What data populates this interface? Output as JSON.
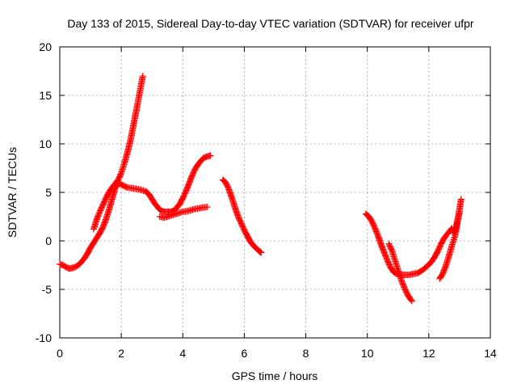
{
  "chart_data": {
    "type": "scatter",
    "title": "Day 133 of 2015, Sidereal Day-to-day VTEC variation (SDTVAR) for receiver ufpr",
    "xlabel": "GPS time / hours",
    "ylabel": "SDTVAR / TECUs",
    "xlim": [
      0,
      14
    ],
    "ylim": [
      -10,
      20
    ],
    "x_ticks": [
      "0",
      "2",
      "4",
      "6",
      "8",
      "10",
      "12",
      "14"
    ],
    "y_ticks": [
      "-10",
      "-5",
      "0",
      "5",
      "10",
      "15",
      "20"
    ],
    "x_tick_values": [
      0,
      2,
      4,
      6,
      8,
      10,
      12,
      14
    ],
    "y_tick_values": [
      -10,
      -5,
      0,
      5,
      10,
      15,
      20
    ],
    "grid": true,
    "marker": "plus",
    "color": "#ff0000",
    "series": [
      {
        "points": [
          [
            0.0,
            -2.4
          ],
          [
            0.1,
            -2.5
          ],
          [
            0.2,
            -2.7
          ],
          [
            0.3,
            -2.85
          ],
          [
            0.4,
            -2.8
          ],
          [
            0.5,
            -2.7
          ],
          [
            0.6,
            -2.5
          ],
          [
            0.7,
            -2.2
          ],
          [
            0.8,
            -1.8
          ],
          [
            0.9,
            -1.3
          ],
          [
            1.0,
            -0.7
          ],
          [
            1.1,
            -0.2
          ],
          [
            1.2,
            0.3
          ],
          [
            1.3,
            0.8
          ],
          [
            1.4,
            1.4
          ],
          [
            1.5,
            2.2
          ],
          [
            1.6,
            3.2
          ],
          [
            1.7,
            4.3
          ],
          [
            1.8,
            5.4
          ],
          [
            1.9,
            6.0
          ],
          [
            2.0,
            5.8
          ],
          [
            2.2,
            5.5
          ],
          [
            2.4,
            5.4
          ],
          [
            2.6,
            5.3
          ],
          [
            2.8,
            5.1
          ],
          [
            2.9,
            4.8
          ],
          [
            3.0,
            4.3
          ],
          [
            3.1,
            3.8
          ],
          [
            3.2,
            3.4
          ],
          [
            3.3,
            3.1
          ],
          [
            3.4,
            3.0
          ],
          [
            3.5,
            3.0
          ],
          [
            3.6,
            3.0
          ],
          [
            3.7,
            3.1
          ],
          [
            3.8,
            3.4
          ],
          [
            3.9,
            3.8
          ],
          [
            4.0,
            4.4
          ],
          [
            4.1,
            5.1
          ],
          [
            4.2,
            5.9
          ],
          [
            4.3,
            6.7
          ],
          [
            4.4,
            7.4
          ],
          [
            4.5,
            7.9
          ],
          [
            4.6,
            8.3
          ],
          [
            4.7,
            8.6
          ],
          [
            4.8,
            8.7
          ],
          [
            4.9,
            8.8
          ]
        ]
      },
      {
        "points": [
          [
            1.1,
            1.2
          ],
          [
            1.2,
            2.2
          ],
          [
            1.3,
            3.0
          ],
          [
            1.4,
            3.7
          ],
          [
            1.5,
            4.4
          ],
          [
            1.6,
            5.0
          ],
          [
            1.7,
            5.5
          ],
          [
            1.8,
            5.9
          ],
          [
            1.9,
            6.3
          ],
          [
            2.0,
            7.0
          ],
          [
            2.1,
            8.0
          ],
          [
            2.2,
            9.1
          ],
          [
            2.3,
            10.4
          ],
          [
            2.4,
            12.0
          ],
          [
            2.5,
            13.6
          ],
          [
            2.6,
            15.3
          ],
          [
            2.7,
            17.0
          ]
        ]
      },
      {
        "points": [
          [
            3.25,
            2.5
          ],
          [
            3.4,
            2.4
          ],
          [
            3.6,
            2.6
          ],
          [
            3.8,
            2.8
          ],
          [
            4.0,
            3.0
          ],
          [
            4.2,
            3.1
          ],
          [
            4.4,
            3.3
          ],
          [
            4.6,
            3.4
          ],
          [
            4.8,
            3.5
          ]
        ]
      },
      {
        "points": [
          [
            5.3,
            6.3
          ],
          [
            5.4,
            6.0
          ],
          [
            5.5,
            5.3
          ],
          [
            5.6,
            4.4
          ],
          [
            5.7,
            3.4
          ],
          [
            5.8,
            2.5
          ],
          [
            5.9,
            1.8
          ],
          [
            6.0,
            1.1
          ],
          [
            6.1,
            0.5
          ],
          [
            6.2,
            -0.1
          ],
          [
            6.3,
            -0.5
          ],
          [
            6.4,
            -0.8
          ],
          [
            6.5,
            -1.1
          ],
          [
            6.55,
            -1.2
          ]
        ]
      },
      {
        "points": [
          [
            9.95,
            2.8
          ],
          [
            10.05,
            2.5
          ],
          [
            10.15,
            2.0
          ],
          [
            10.25,
            1.3
          ],
          [
            10.35,
            0.5
          ],
          [
            10.45,
            -0.4
          ],
          [
            10.55,
            -1.2
          ],
          [
            10.65,
            -2.0
          ],
          [
            10.75,
            -2.7
          ],
          [
            10.85,
            -3.2
          ],
          [
            10.95,
            -3.4
          ],
          [
            11.05,
            -3.5
          ],
          [
            11.2,
            -3.5
          ],
          [
            11.35,
            -3.5
          ],
          [
            11.5,
            -3.4
          ],
          [
            11.65,
            -3.3
          ],
          [
            11.8,
            -3.0
          ],
          [
            11.95,
            -2.6
          ],
          [
            12.1,
            -2.1
          ],
          [
            12.2,
            -1.6
          ],
          [
            12.3,
            -1.0
          ],
          [
            12.4,
            -0.3
          ],
          [
            12.5,
            0.3
          ],
          [
            12.6,
            0.7
          ],
          [
            12.7,
            1.1
          ],
          [
            12.75,
            1.3
          ]
        ]
      },
      {
        "points": [
          [
            10.7,
            -0.3
          ],
          [
            10.8,
            -1.0
          ],
          [
            10.9,
            -2.0
          ],
          [
            11.0,
            -3.0
          ],
          [
            11.1,
            -4.0
          ],
          [
            11.2,
            -4.8
          ],
          [
            11.3,
            -5.5
          ],
          [
            11.4,
            -6.0
          ],
          [
            11.45,
            -6.2
          ]
        ]
      },
      {
        "points": [
          [
            12.35,
            -3.9
          ],
          [
            12.45,
            -3.4
          ],
          [
            12.55,
            -2.6
          ],
          [
            12.65,
            -1.6
          ],
          [
            12.75,
            -0.5
          ],
          [
            12.85,
            0.5
          ],
          [
            12.9,
            1.3
          ],
          [
            12.95,
            2.3
          ],
          [
            13.0,
            3.3
          ],
          [
            13.05,
            4.3
          ]
        ]
      },
      {
        "points": [
          [
            12.8,
            0.8
          ],
          [
            12.9,
            1.6
          ],
          [
            12.95,
            2.4
          ],
          [
            13.0,
            2.9
          ]
        ]
      }
    ]
  }
}
